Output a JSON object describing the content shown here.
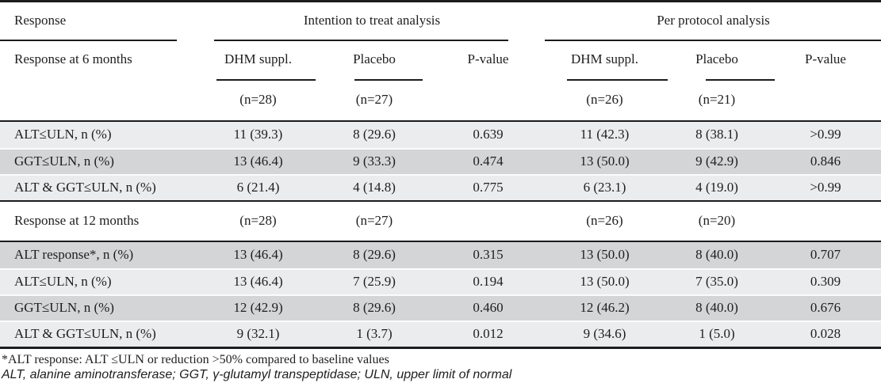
{
  "table": {
    "header": {
      "response_label": "Response",
      "group_itt": "Intention to treat analysis",
      "group_pp": "Per protocol analysis",
      "subheader_label": "Response at 6 months",
      "columns": [
        "DHM suppl.",
        "Placebo",
        "P-value",
        "DHM suppl.",
        "Placebo",
        "P-value"
      ],
      "n_6m": [
        "(n=28)",
        "(n=27)",
        "",
        "(n=26)",
        "(n=21)",
        ""
      ]
    },
    "rows_6m": [
      {
        "label": "ALT≤ULN, n (%)",
        "values": [
          "11 (39.3)",
          "8 (29.6)",
          "0.639",
          "11 (42.3)",
          "8 (38.1)",
          ">0.99"
        ]
      },
      {
        "label": "GGT≤ULN, n (%)",
        "values": [
          "13 (46.4)",
          "9 (33.3)",
          "0.474",
          "13 (50.0)",
          "9 (42.9)",
          "0.846"
        ]
      },
      {
        "label": "ALT & GGT≤ULN, n (%)",
        "values": [
          "6 (21.4)",
          "4 (14.8)",
          "0.775",
          "6 (23.1)",
          "4 (19.0)",
          ">0.99"
        ]
      }
    ],
    "section_12m": {
      "label": "Response at 12 months",
      "n_12m": [
        "(n=28)",
        "(n=27)",
        "",
        "(n=26)",
        "(n=20)",
        ""
      ]
    },
    "rows_12m": [
      {
        "label": "ALT response*, n (%)",
        "values": [
          "13 (46.4)",
          "8 (29.6)",
          "0.315",
          "13 (50.0)",
          "8 (40.0)",
          "0.707"
        ]
      },
      {
        "label": "ALT≤ULN, n (%)",
        "values": [
          "13 (46.4)",
          "7 (25.9)",
          "0.194",
          "13 (50.0)",
          "7 (35.0)",
          "0.309"
        ]
      },
      {
        "label": "GGT≤ULN, n (%)",
        "values": [
          "12 (42.9)",
          "8 (29.6)",
          "0.460",
          "12 (46.2)",
          "8 (40.0)",
          "0.676"
        ]
      },
      {
        "label": "ALT & GGT≤ULN, n (%)",
        "values": [
          "9 (32.1)",
          "1 (3.7)",
          "0.012",
          "9 (34.6)",
          "1 (5.0)",
          "0.028"
        ]
      }
    ],
    "footnotes": [
      "*ALT response: ALT ≤ULN or reduction >50% compared to baseline values",
      "ALT, alanine aminotransferase; GGT, γ-glutamyl transpeptidase; ULN, upper limit of normal"
    ],
    "colors": {
      "row_light": "#ebecee",
      "row_dark": "#d4d5d7",
      "rule": "#1c1c1c",
      "text": "#1e1e1e"
    }
  }
}
